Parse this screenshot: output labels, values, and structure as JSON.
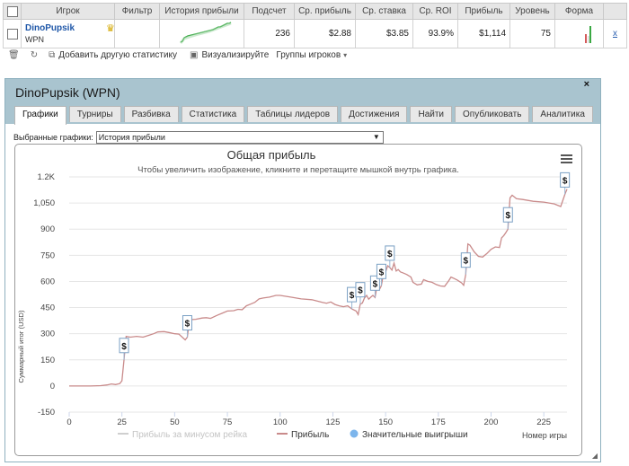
{
  "stats_table": {
    "headers": [
      "Игрок",
      "Фильтр",
      "История прибыли",
      "Подсчет",
      "Ср. прибыль",
      "Ср. ставка",
      "Ср. ROI",
      "Прибыль",
      "Уровень",
      "Форма"
    ],
    "row": {
      "player": "DinoPupsik",
      "network": "WPN",
      "filter": "",
      "count": "236",
      "avg_profit": "$2.88",
      "avg_stake": "$3.85",
      "avg_roi": "93.9%",
      "profit": "$1,114",
      "level": "75",
      "remove": "x"
    }
  },
  "toolbar": {
    "add_stats": "Добавить другую статистику",
    "visualize": "Визуализируйте",
    "player_groups": "Группы игроков"
  },
  "dialog": {
    "title": "DinoPupsik (WPN)",
    "close": "×",
    "tabs": [
      "Графики",
      "Турниры",
      "Разбивка",
      "Статистика",
      "Таблицы лидеров",
      "Достижения",
      "Найти",
      "Опубликовать",
      "Аналитика"
    ],
    "graphs_label": "Выбранные графики:",
    "graphs_value": "История прибыли"
  },
  "chart_data": {
    "type": "line",
    "title": "Общая прибыль",
    "subtitle": "Чтобы увеличить изображение, кликните и перетащите мышкой внутрь графика.",
    "xlabel": "Номер игры",
    "ylabel": "Суммарный итог (USD)",
    "xlim": [
      0,
      236
    ],
    "ylim": [
      -150,
      1200
    ],
    "x_ticks": [
      0,
      25,
      50,
      75,
      100,
      125,
      150,
      175,
      200,
      225
    ],
    "y_ticks": [
      "-150",
      "0",
      "150",
      "300",
      "450",
      "600",
      "750",
      "900",
      "1,050",
      "1.2K"
    ],
    "legend": [
      "Прибыль за минусом рейка",
      "Прибыль",
      "Значительные выигрыши"
    ],
    "series": [
      {
        "name": "Прибыль",
        "color": "#c98b8b",
        "points": [
          [
            0,
            0
          ],
          [
            5,
            0
          ],
          [
            10,
            0
          ],
          [
            15,
            2
          ],
          [
            18,
            6
          ],
          [
            20,
            12
          ],
          [
            22,
            8
          ],
          [
            24,
            14
          ],
          [
            25,
            30
          ],
          [
            26,
            150
          ],
          [
            27,
            285
          ],
          [
            29,
            280
          ],
          [
            32,
            285
          ],
          [
            35,
            280
          ],
          [
            38,
            292
          ],
          [
            40,
            300
          ],
          [
            42,
            310
          ],
          [
            45,
            312
          ],
          [
            48,
            305
          ],
          [
            50,
            300
          ],
          [
            52,
            298
          ],
          [
            55,
            265
          ],
          [
            56,
            280
          ],
          [
            57,
            380
          ],
          [
            60,
            383
          ],
          [
            63,
            390
          ],
          [
            65,
            392
          ],
          [
            67,
            388
          ],
          [
            70,
            405
          ],
          [
            73,
            420
          ],
          [
            75,
            430
          ],
          [
            78,
            432
          ],
          [
            80,
            440
          ],
          [
            82,
            438
          ],
          [
            84,
            460
          ],
          [
            86,
            470
          ],
          [
            88,
            480
          ],
          [
            90,
            500
          ],
          [
            92,
            505
          ],
          [
            95,
            510
          ],
          [
            98,
            520
          ],
          [
            100,
            520
          ],
          [
            105,
            510
          ],
          [
            110,
            500
          ],
          [
            115,
            495
          ],
          [
            120,
            480
          ],
          [
            122,
            475
          ],
          [
            124,
            482
          ],
          [
            126,
            468
          ],
          [
            128,
            460
          ],
          [
            130,
            455
          ],
          [
            132,
            460
          ],
          [
            134,
            442
          ],
          [
            136,
            430
          ],
          [
            137,
            410
          ],
          [
            138,
            470
          ],
          [
            139,
            476
          ],
          [
            140,
            505
          ],
          [
            141,
            520
          ],
          [
            142,
            498
          ],
          [
            143,
            510
          ],
          [
            144,
            520
          ],
          [
            145,
            508
          ],
          [
            146,
            578
          ],
          [
            147,
            552
          ],
          [
            148,
            575
          ],
          [
            149,
            645
          ],
          [
            150,
            655
          ],
          [
            151,
            690
          ],
          [
            152,
            680
          ],
          [
            153,
            665
          ],
          [
            154,
            705
          ],
          [
            155,
            660
          ],
          [
            156,
            668
          ],
          [
            157,
            655
          ],
          [
            158,
            650
          ],
          [
            160,
            640
          ],
          [
            162,
            625
          ],
          [
            163,
            595
          ],
          [
            165,
            580
          ],
          [
            167,
            585
          ],
          [
            168,
            610
          ],
          [
            170,
            600
          ],
          [
            172,
            595
          ],
          [
            174,
            582
          ],
          [
            176,
            574
          ],
          [
            178,
            572
          ],
          [
            180,
            605
          ],
          [
            181,
            625
          ],
          [
            182,
            620
          ],
          [
            184,
            608
          ],
          [
            186,
            592
          ],
          [
            187,
            578
          ],
          [
            188,
            640
          ],
          [
            189,
            815
          ],
          [
            190,
            808
          ],
          [
            192,
            770
          ],
          [
            194,
            744
          ],
          [
            196,
            740
          ],
          [
            198,
            760
          ],
          [
            200,
            784
          ],
          [
            202,
            798
          ],
          [
            204,
            795
          ],
          [
            205,
            850
          ],
          [
            206,
            863
          ],
          [
            207,
            880
          ],
          [
            208,
            900
          ],
          [
            209,
            1080
          ],
          [
            210,
            1095
          ],
          [
            212,
            1075
          ],
          [
            215,
            1070
          ],
          [
            220,
            1060
          ],
          [
            225,
            1055
          ],
          [
            230,
            1045
          ],
          [
            233,
            1030
          ],
          [
            235,
            1100
          ],
          [
            236,
            1130
          ]
        ]
      }
    ],
    "big_wins": [
      26,
      56,
      134,
      138,
      145,
      148,
      152,
      188,
      208,
      235
    ]
  }
}
